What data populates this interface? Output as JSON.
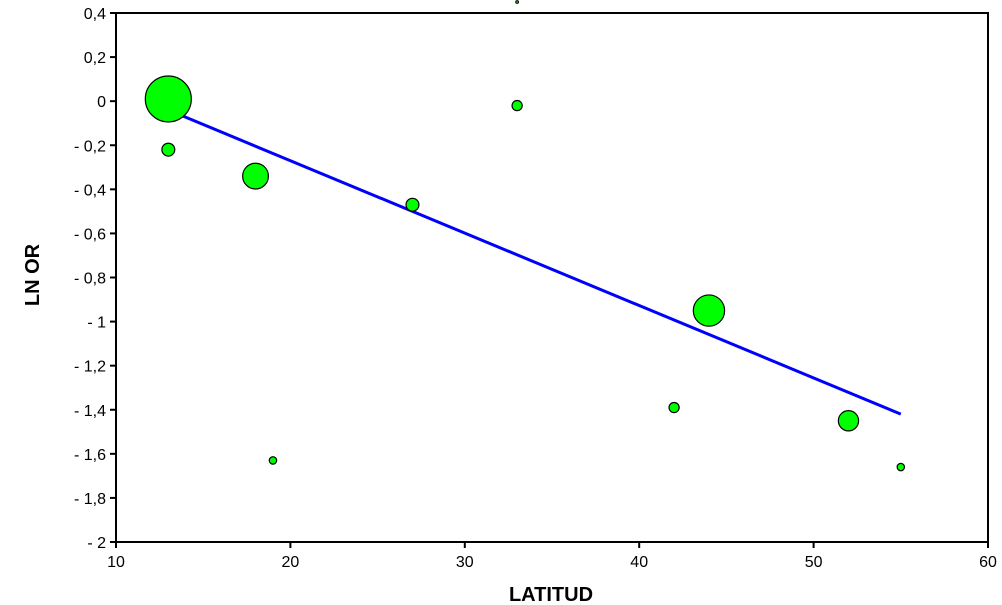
{
  "chart_data": {
    "type": "scatter",
    "title": "",
    "xlabel": "LATITUD",
    "ylabel": "LN OR",
    "xlim": [
      10,
      60
    ],
    "ylim": [
      -2,
      0.4
    ],
    "x_ticks": [
      10,
      20,
      30,
      40,
      50,
      60
    ],
    "x_tick_labels": [
      "10",
      "20",
      "30",
      "40",
      "50",
      "60"
    ],
    "y_ticks": [
      0.4,
      0.2,
      0,
      -0.2,
      -0.4,
      -0.6,
      -0.8,
      -1,
      -1.2,
      -1.4,
      -1.6,
      -1.8,
      -2
    ],
    "y_tick_labels": [
      "0,4",
      "0,2",
      "0",
      "- 0,2",
      "- 0,4",
      "- 0,6",
      "- 0,8",
      "- 1",
      "- 1,2",
      "- 1,4",
      "- 1,6",
      "- 1,8",
      "- 2"
    ],
    "grid": false,
    "points": [
      {
        "x": 13,
        "y": 0.01,
        "weight": 5
      },
      {
        "x": 13,
        "y": -0.22,
        "weight": 1.4
      },
      {
        "x": 18,
        "y": -0.34,
        "weight": 2.8
      },
      {
        "x": 19,
        "y": -1.63,
        "weight": 0.8
      },
      {
        "x": 27,
        "y": -0.47,
        "weight": 1.4
      },
      {
        "x": 33,
        "y": -0.02,
        "weight": 1.1
      },
      {
        "x": 33,
        "y": 0.45,
        "weight": 0.3
      },
      {
        "x": 42,
        "y": -1.39,
        "weight": 1.1
      },
      {
        "x": 44,
        "y": -0.95,
        "weight": 3.4
      },
      {
        "x": 52,
        "y": -1.45,
        "weight": 2.2
      },
      {
        "x": 55,
        "y": -1.66,
        "weight": 0.8
      }
    ],
    "regression_line": {
      "x": [
        13,
        55
      ],
      "y": [
        -0.04,
        -1.42
      ]
    },
    "colors": {
      "points": "#00ff00",
      "point_outline": "#000000",
      "line": "#0000ff",
      "axis": "#000000"
    }
  }
}
